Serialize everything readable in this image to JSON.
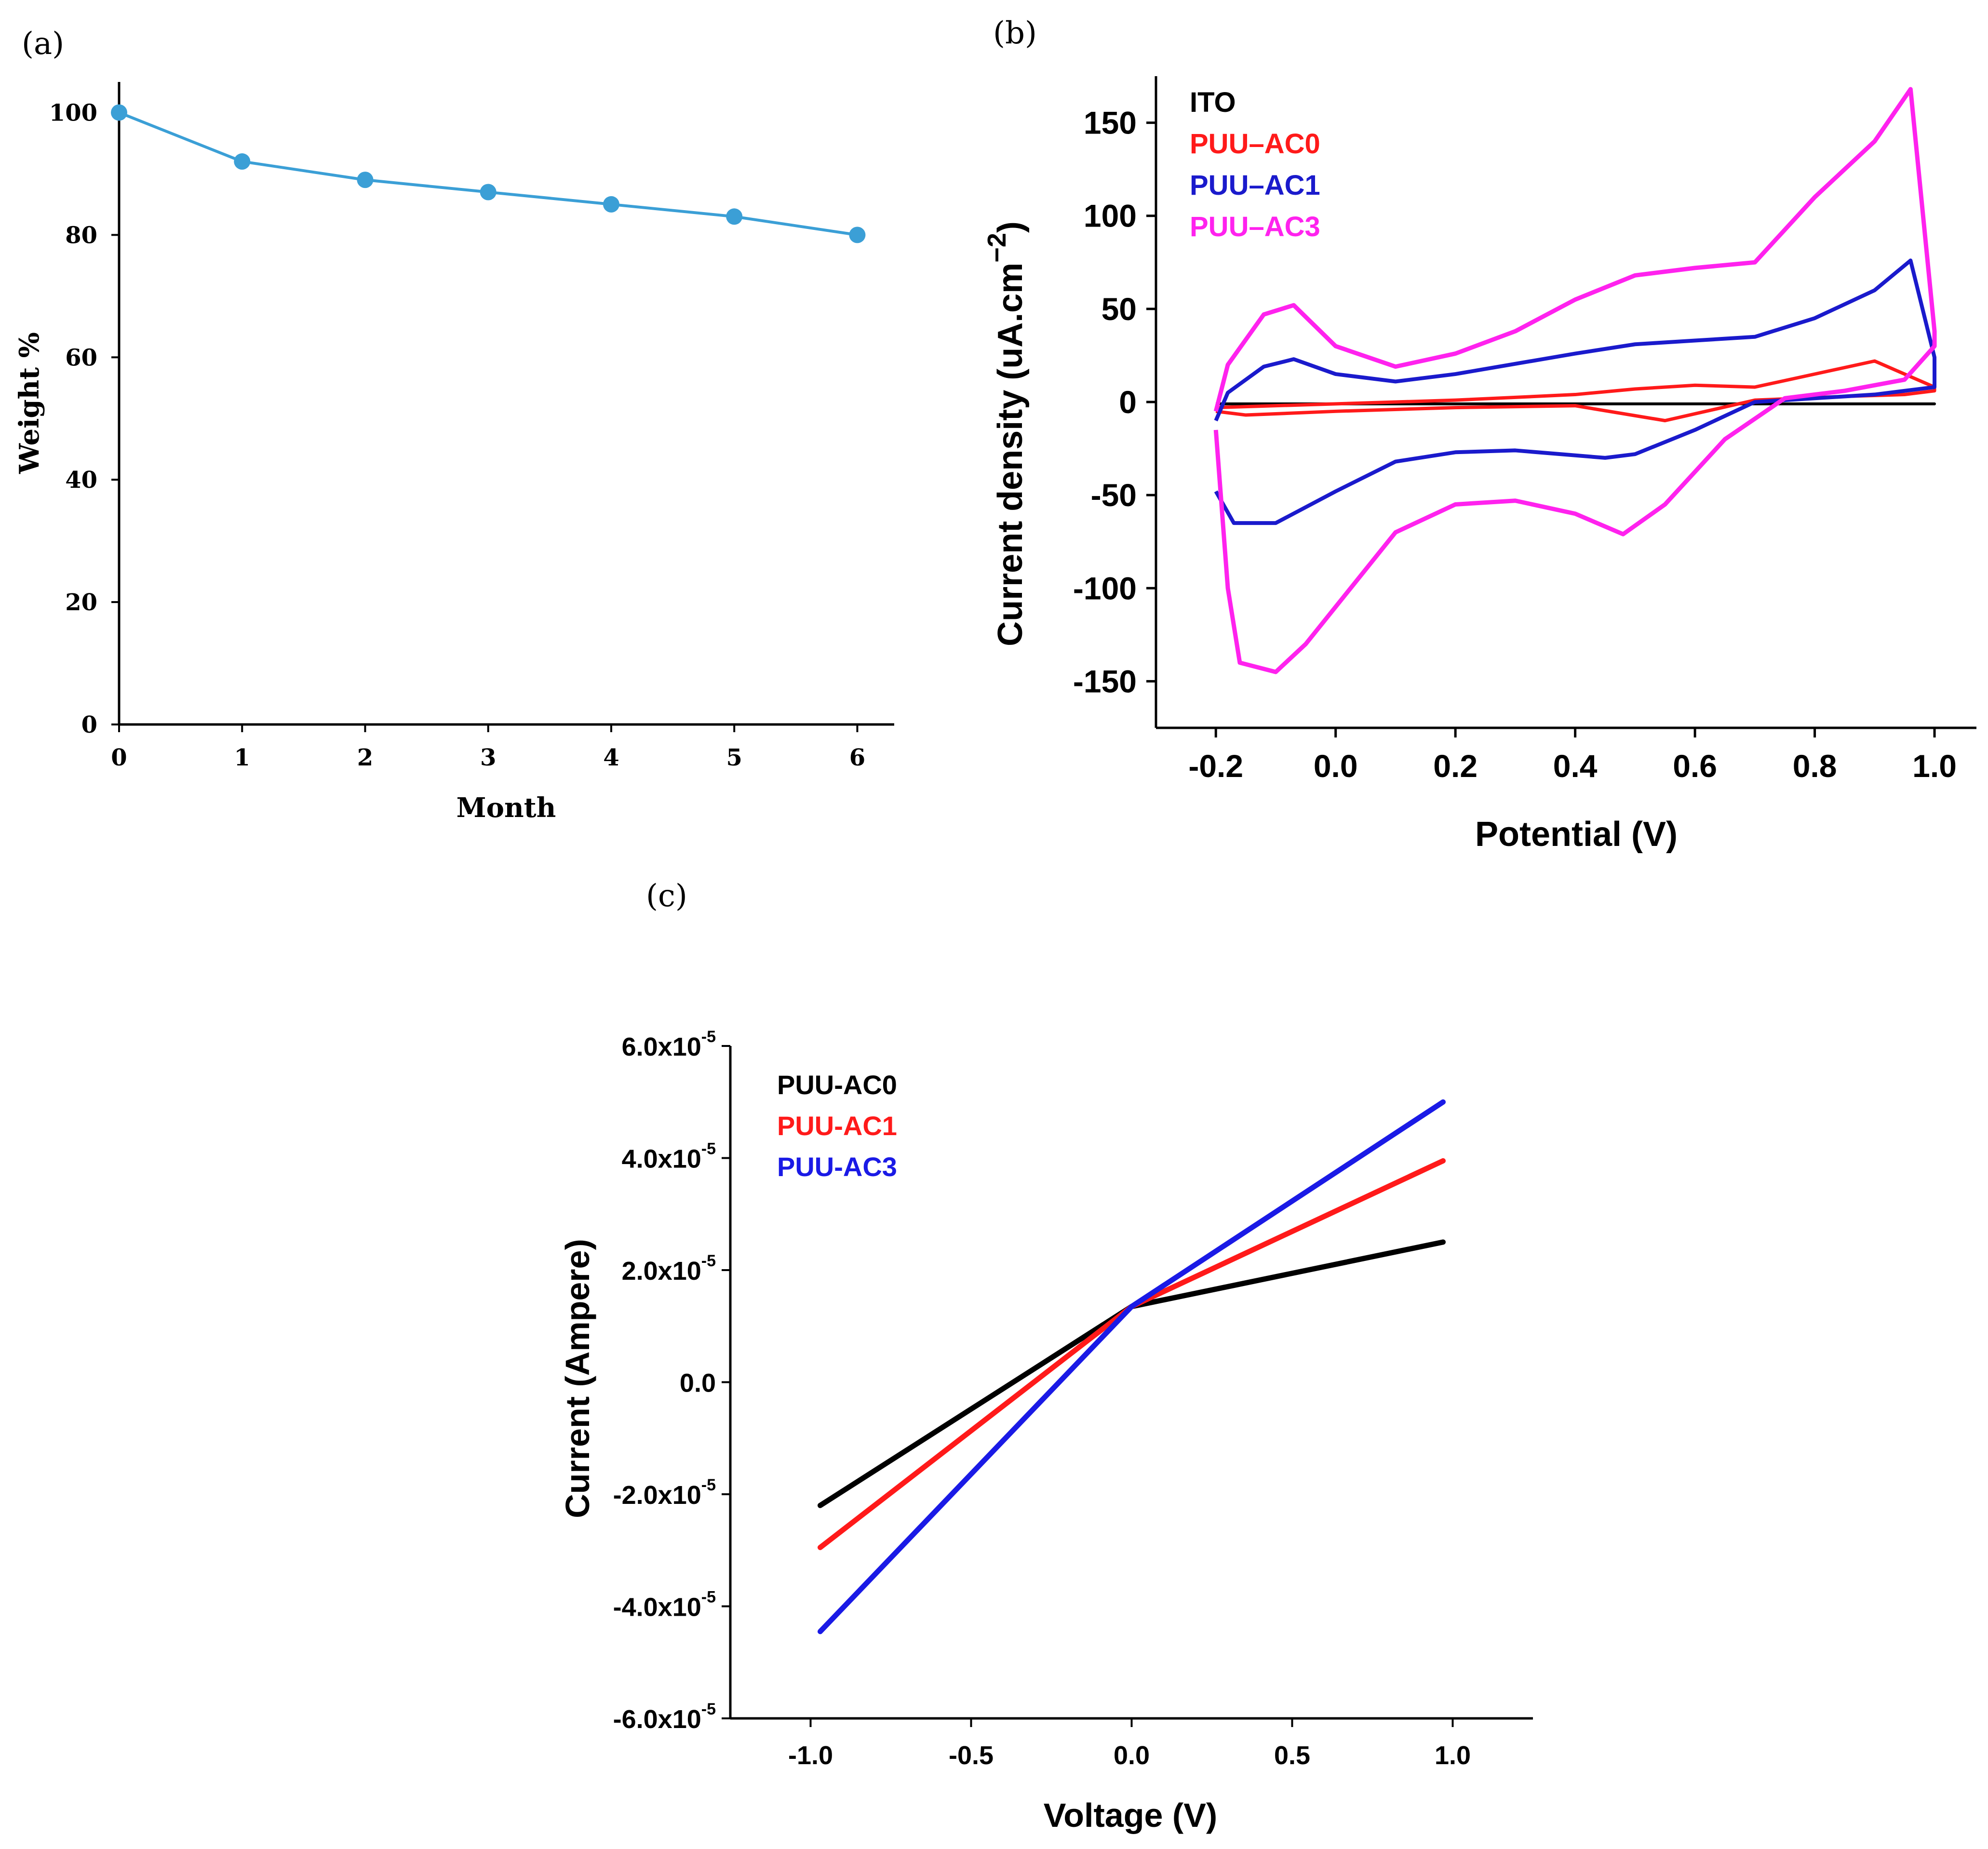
{
  "chart_data": [
    {
      "panel": "(a)",
      "type": "line",
      "title": "",
      "xlabel": "Month",
      "ylabel": "Weight %",
      "xlim": [
        0,
        6.3
      ],
      "ylim": [
        0,
        105
      ],
      "xticks": [
        "0",
        "1",
        "2",
        "3",
        "4",
        "5",
        "6"
      ],
      "yticks": [
        "0",
        "20",
        "40",
        "60",
        "80",
        "100"
      ],
      "grid": false,
      "color": "#3b9fd6",
      "series": [
        {
          "name": "Weight %",
          "x": [
            0,
            1,
            2,
            3,
            4,
            5,
            6
          ],
          "values": [
            100,
            92,
            89,
            87,
            85,
            83,
            80
          ]
        }
      ]
    },
    {
      "panel": "(b)",
      "type": "line",
      "title": "",
      "xlabel": "Potential (V)",
      "ylabel_main": "Current density (uA.cm",
      "ylabel_sup": "−2",
      "ylabel_close": ")",
      "xlim": [
        -0.3,
        1.07
      ],
      "ylim": [
        -175,
        175
      ],
      "xticks": [
        "-0.2",
        "0.0",
        "0.2",
        "0.4",
        "0.6",
        "0.8",
        "1.0"
      ],
      "yticks": [
        "-150",
        "-100",
        "-50",
        "0",
        "50",
        "100",
        "150"
      ],
      "grid": false,
      "legend_position": "top-left",
      "series": [
        {
          "name": "ITO",
          "color": "#000000",
          "x": [
            -0.2,
            1.0,
            -0.2
          ],
          "values": [
            -1,
            -1,
            -1
          ]
        },
        {
          "name": "PUU–AC0",
          "color": "#ff1a1a",
          "x": [
            -0.2,
            -0.15,
            0.0,
            0.2,
            0.4,
            0.55,
            0.7,
            0.85,
            0.95,
            1.0,
            1.0,
            0.9,
            0.7,
            0.6,
            0.5,
            0.4,
            0.2,
            0.0,
            -0.2
          ],
          "values": [
            -5,
            -7,
            -5,
            -3,
            -2,
            -10,
            1,
            3,
            4,
            6,
            8,
            22,
            8,
            9,
            7,
            4,
            1,
            -1,
            -3
          ]
        },
        {
          "name": "PUU–AC1",
          "color": "#1a1acc",
          "x": [
            -0.2,
            -0.17,
            -0.1,
            0.0,
            0.1,
            0.2,
            0.3,
            0.45,
            0.5,
            0.6,
            0.7,
            0.8,
            0.9,
            1.0,
            1.0,
            0.96,
            0.9,
            0.8,
            0.7,
            0.6,
            0.5,
            0.4,
            0.2,
            0.1,
            0.0,
            -0.07,
            -0.12,
            -0.18,
            -0.2
          ],
          "values": [
            -48,
            -65,
            -65,
            -48,
            -32,
            -27,
            -26,
            -30,
            -28,
            -15,
            0,
            2,
            4,
            8,
            24,
            76,
            60,
            45,
            35,
            33,
            31,
            26,
            15,
            11,
            15,
            23,
            19,
            5,
            -10
          ]
        },
        {
          "name": "PUU–AC3",
          "color": "#ff22ee",
          "x": [
            -0.2,
            -0.18,
            -0.16,
            -0.1,
            -0.05,
            0.0,
            0.1,
            0.2,
            0.3,
            0.4,
            0.48,
            0.55,
            0.65,
            0.75,
            0.85,
            0.95,
            1.0,
            1.0,
            0.96,
            0.9,
            0.8,
            0.7,
            0.6,
            0.5,
            0.4,
            0.3,
            0.2,
            0.1,
            0.0,
            -0.07,
            -0.12,
            -0.18,
            -0.2
          ],
          "values": [
            -15,
            -100,
            -140,
            -145,
            -130,
            -110,
            -70,
            -55,
            -53,
            -60,
            -71,
            -55,
            -20,
            2,
            6,
            12,
            30,
            38,
            168,
            140,
            110,
            75,
            72,
            68,
            55,
            38,
            26,
            19,
            30,
            52,
            47,
            20,
            -5
          ]
        }
      ]
    },
    {
      "panel": "(c)",
      "type": "line",
      "title": "",
      "xlabel": "Voltage (V)",
      "ylabel": "Current (Ampere)",
      "xlim": [
        -1.25,
        1.25
      ],
      "ylim": [
        -6e-05,
        6e-05
      ],
      "xticks": [
        "-1.0",
        "-0.5",
        "0.0",
        "0.5",
        "1.0"
      ],
      "yticks": [
        {
          "base": "-6.0x10",
          "exp": "-5"
        },
        {
          "base": "-4.0x10",
          "exp": "-5"
        },
        {
          "base": "-2.0x10",
          "exp": "-5"
        },
        {
          "base": "0.0",
          "exp": ""
        },
        {
          "base": "2.0x10",
          "exp": "-5"
        },
        {
          "base": "4.0x10",
          "exp": "-5"
        },
        {
          "base": "6.0x10",
          "exp": "-5"
        }
      ],
      "grid": false,
      "legend_position": "top-left",
      "series": [
        {
          "name": "PUU-AC0",
          "color": "#000000",
          "x": [
            -0.97,
            0.0,
            0.97
          ],
          "values": [
            -2.2e-05,
            1.35e-05,
            2.5e-05
          ]
        },
        {
          "name": "PUU-AC1",
          "color": "#ff1a1a",
          "x": [
            -0.97,
            0.0,
            0.97
          ],
          "values": [
            -2.95e-05,
            1.35e-05,
            3.95e-05
          ]
        },
        {
          "name": "PUU-AC3",
          "color": "#1a1ae6",
          "x": [
            -0.97,
            0.0,
            0.97
          ],
          "values": [
            -4.45e-05,
            1.35e-05,
            5e-05
          ]
        }
      ]
    }
  ]
}
